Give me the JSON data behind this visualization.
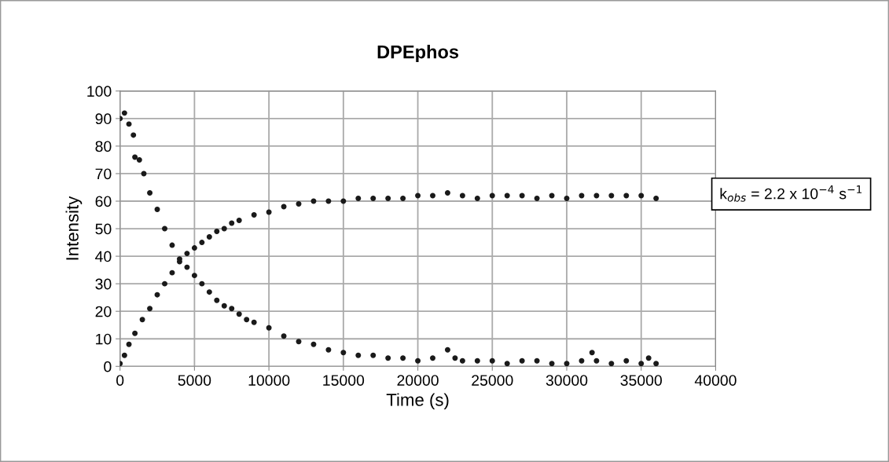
{
  "chart_data": {
    "type": "scatter",
    "title": "DPEphos",
    "xlabel": "Time (s)",
    "ylabel": "Intensity",
    "series": [
      {
        "color": "#1a1a1a",
        "x": [
          0,
          300,
          600,
          900,
          1000,
          1300,
          1600,
          2000,
          2500,
          3000,
          3500,
          4000,
          4500,
          5000,
          5500,
          6000,
          6500,
          7000,
          7500,
          8000,
          8500,
          9000,
          10000,
          11000,
          12000,
          13000,
          14000,
          15000,
          16000,
          17000,
          18000,
          19000,
          20000,
          21000,
          22000,
          22500,
          23000,
          24000,
          25000,
          26000,
          27000,
          28000,
          29000,
          30000,
          31000,
          31700,
          32000,
          33000,
          34000,
          35000,
          35500,
          36000
        ],
        "values": [
          90,
          92,
          88,
          84,
          76,
          75,
          70,
          63,
          57,
          50,
          44,
          39,
          36,
          33,
          30,
          27,
          24,
          22,
          21,
          19,
          17,
          16,
          14,
          11,
          9,
          8,
          6,
          5,
          4,
          4,
          3,
          3,
          2,
          3,
          6,
          3,
          2,
          2,
          2,
          1,
          2,
          2,
          1,
          1,
          2,
          5,
          2,
          1,
          2,
          1,
          3,
          1
        ]
      },
      {
        "color": "#1a1a1a",
        "x": [
          0,
          300,
          600,
          1000,
          1500,
          2000,
          2500,
          3000,
          3500,
          4000,
          4500,
          5000,
          5500,
          6000,
          6500,
          7000,
          7500,
          8000,
          9000,
          10000,
          11000,
          12000,
          13000,
          14000,
          15000,
          16000,
          17000,
          18000,
          19000,
          20000,
          21000,
          22000,
          23000,
          24000,
          25000,
          26000,
          27000,
          28000,
          29000,
          30000,
          31000,
          32000,
          33000,
          34000,
          35000,
          36000
        ],
        "values": [
          1,
          4,
          8,
          12,
          17,
          21,
          26,
          30,
          34,
          38,
          41,
          43,
          45,
          47,
          49,
          50,
          52,
          53,
          55,
          56,
          58,
          59,
          60,
          60,
          60,
          61,
          61,
          61,
          61,
          62,
          62,
          63,
          62,
          61,
          62,
          62,
          62,
          61,
          62,
          61,
          62,
          62,
          62,
          62,
          62,
          61
        ]
      }
    ],
    "xlim": [
      0,
      40000
    ],
    "xticks": [
      0,
      5000,
      10000,
      15000,
      20000,
      25000,
      30000,
      35000,
      40000
    ],
    "ylim": [
      0,
      100
    ],
    "yticks": [
      0,
      10,
      20,
      30,
      40,
      50,
      60,
      70,
      80,
      90,
      100
    ],
    "grid": true,
    "marker": "circle",
    "annotations": [
      "k$_{obs}$ = 2.2 x 10$^{−4}$ s$^{−1}$"
    ]
  }
}
